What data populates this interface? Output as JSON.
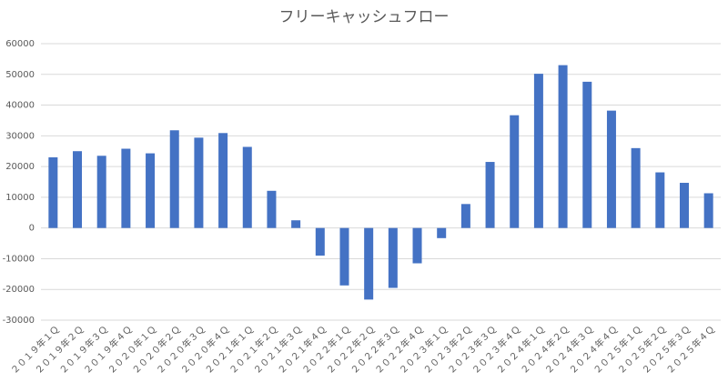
{
  "chart_data": {
    "type": "bar",
    "title": "フリーキャッシュフロー",
    "categories": [
      "２０１９年１Ｑ",
      "２０１９年２Ｑ",
      "２０１９年３Ｑ",
      "２０１９年４Ｑ",
      "２０２０年１Ｑ",
      "２０２０年２Ｑ",
      "２０２０年３Ｑ",
      "２０２０年４Ｑ",
      "２０２１年１Ｑ",
      "２０２１年２Ｑ",
      "２０２１年３Ｑ",
      "２０２１年４Ｑ",
      "２０２２年１Ｑ",
      "２０２２年２Ｑ",
      "２０２２年３Ｑ",
      "２０２２年４Ｑ",
      "２０２３年１Ｑ",
      "２０２３年２Ｑ",
      "２０２３年３Ｑ",
      "２０２３年４Ｑ",
      "２０２４年１Ｑ",
      "２０２４年２Ｑ",
      "２０２４年３Ｑ",
      "２０２４年４Ｑ",
      "２０２５年１Ｑ",
      "２０２５年２Ｑ",
      "２０２５年３Ｑ",
      "２０２５年４Ｑ"
    ],
    "values": [
      23000,
      25000,
      23500,
      25800,
      24300,
      31800,
      29400,
      30900,
      26400,
      12100,
      2500,
      -9000,
      -18700,
      -23300,
      -19500,
      -11500,
      -3300,
      7800,
      21500,
      36700,
      50200,
      53000,
      47600,
      38200,
      26000,
      18100,
      14700,
      11300
    ],
    "color": "#4472c4",
    "ylim": [
      -30000,
      60000
    ],
    "yticks": [
      -30000,
      -20000,
      -10000,
      0,
      10000,
      20000,
      30000,
      40000,
      50000,
      60000
    ],
    "grid": true
  }
}
